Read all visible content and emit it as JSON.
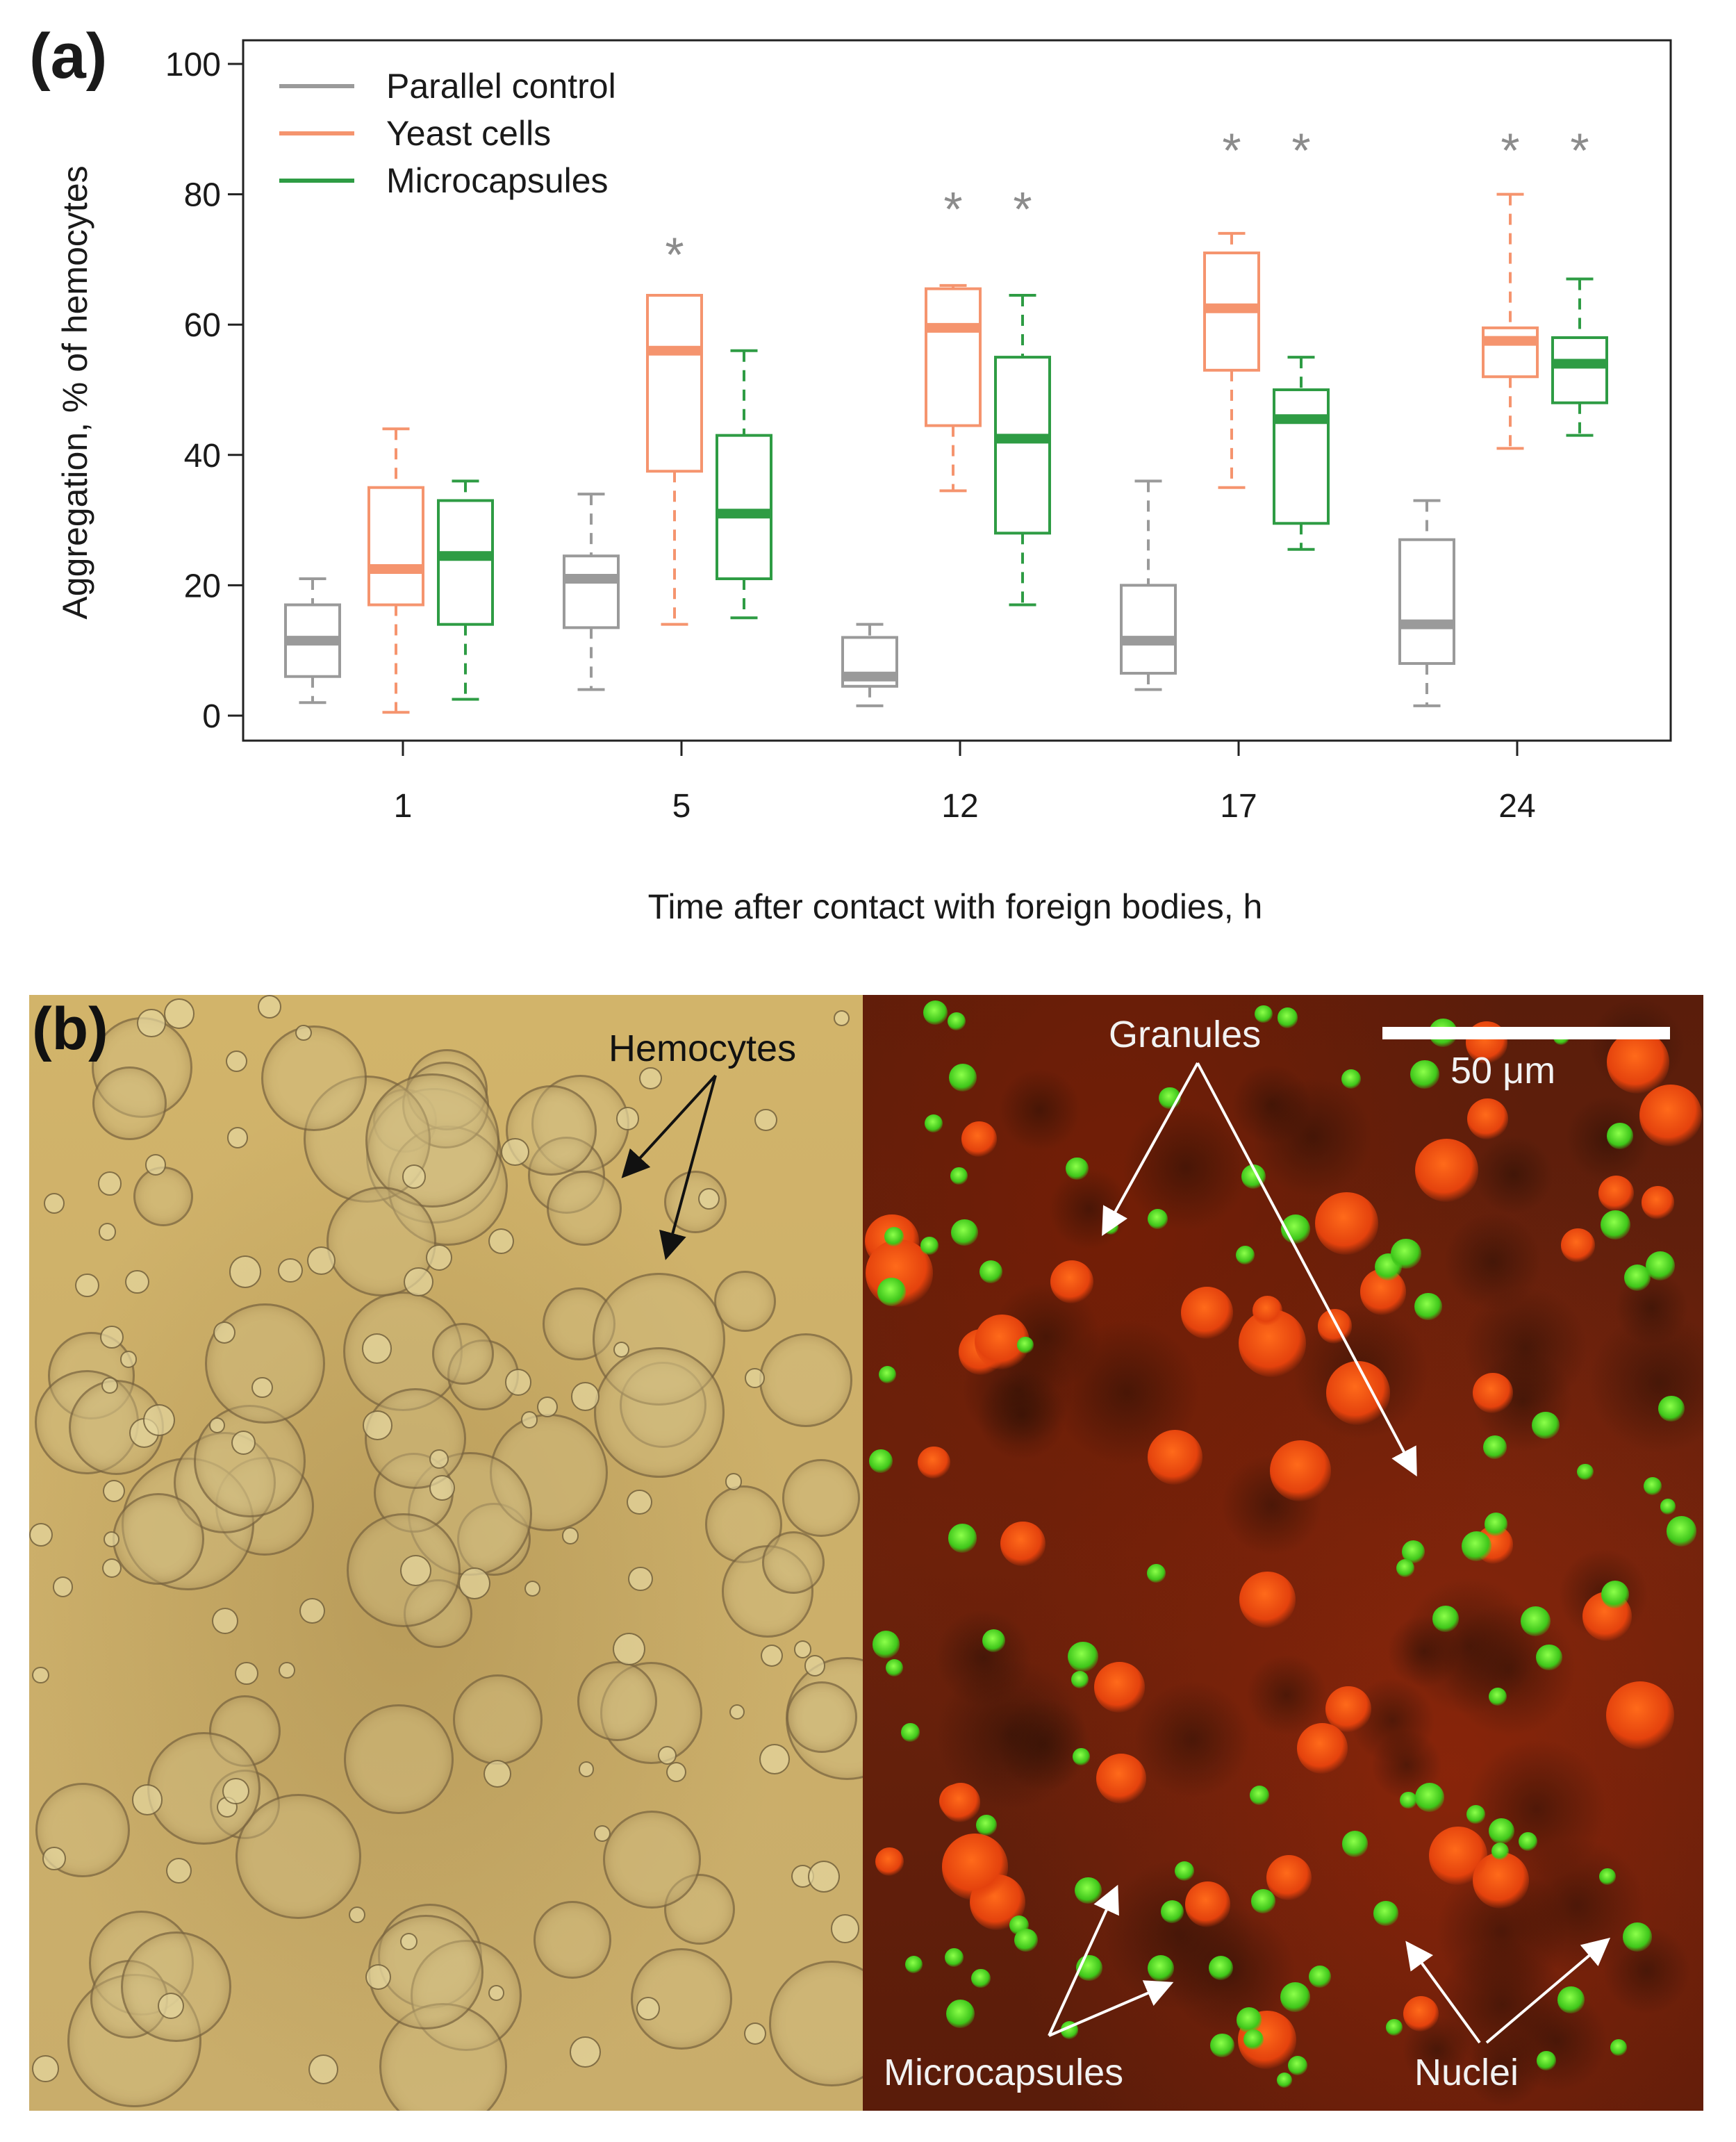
{
  "panel_a_label": "(a)",
  "panel_b_label": "(b)",
  "chart_data": {
    "type": "box",
    "xlabel": "Time after contact with foreign bodies, h",
    "ylabel": "Aggregation, % of hemocytes",
    "ylim": [
      0,
      100
    ],
    "yticks": [
      "0",
      "20",
      "40",
      "60",
      "80",
      "100"
    ],
    "categories": [
      "1",
      "5",
      "12",
      "17",
      "24"
    ],
    "legend_position": "top-left",
    "series": [
      {
        "name": "Parallel control",
        "color": "#9a9a9a",
        "boxes": [
          {
            "min": 2,
            "q1": 6,
            "median": 11.5,
            "q3": 17,
            "max": 21
          },
          {
            "min": 4,
            "q1": 13.5,
            "median": 21,
            "q3": 24.5,
            "max": 34
          },
          {
            "min": 1.5,
            "q1": 4.5,
            "median": 6,
            "q3": 12,
            "max": 14
          },
          {
            "min": 4,
            "q1": 6.5,
            "median": 11.5,
            "q3": 20,
            "max": 36
          },
          {
            "min": 1.5,
            "q1": 8,
            "median": 14,
            "q3": 27,
            "max": 33
          }
        ]
      },
      {
        "name": "Yeast cells",
        "color": "#f5946e",
        "boxes": [
          {
            "min": 0.5,
            "q1": 17,
            "median": 22.5,
            "q3": 35,
            "max": 44
          },
          {
            "min": 14,
            "q1": 37.5,
            "median": 56,
            "q3": 64.5,
            "max": 64.5
          },
          {
            "min": 34.5,
            "q1": 44.5,
            "median": 59.5,
            "q3": 65.5,
            "max": 66
          },
          {
            "min": 35,
            "q1": 53,
            "median": 62.5,
            "q3": 71,
            "max": 74
          },
          {
            "min": 41,
            "q1": 52,
            "median": 57.5,
            "q3": 59.5,
            "max": 80
          }
        ]
      },
      {
        "name": "Microcapsules",
        "color": "#2e9c44",
        "boxes": [
          {
            "min": 2.5,
            "q1": 14,
            "median": 24.5,
            "q3": 33,
            "max": 36
          },
          {
            "min": 15,
            "q1": 21,
            "median": 31,
            "q3": 43,
            "max": 56
          },
          {
            "min": 17,
            "q1": 28,
            "median": 42.5,
            "q3": 55,
            "max": 64.5
          },
          {
            "min": 25.5,
            "q1": 29.5,
            "median": 45.5,
            "q3": 50,
            "max": 55
          },
          {
            "min": 43,
            "q1": 48,
            "median": 54,
            "q3": 58,
            "max": 67
          }
        ]
      }
    ],
    "significance": [
      {
        "category": "5",
        "series": "Yeast cells",
        "y": 72,
        "text": "*"
      },
      {
        "category": "12",
        "series": "Yeast cells",
        "y": 79,
        "text": "*"
      },
      {
        "category": "12",
        "series": "Microcapsules",
        "y": 79,
        "text": "*"
      },
      {
        "category": "17",
        "series": "Yeast cells",
        "y": 88,
        "text": "*"
      },
      {
        "category": "17",
        "series": "Microcapsules",
        "y": 88,
        "text": "*"
      },
      {
        "category": "24",
        "series": "Yeast cells",
        "y": 88,
        "text": "*"
      },
      {
        "category": "24",
        "series": "Microcapsules",
        "y": 88,
        "text": "*"
      }
    ],
    "significance_color": "#8c8c8c"
  },
  "micrograph": {
    "labels": {
      "hemocytes": "Hemocytes",
      "granules": "Granules",
      "scale": "50 μm",
      "microcapsules": "Microcapsules",
      "nuclei": "Nuclei"
    }
  }
}
